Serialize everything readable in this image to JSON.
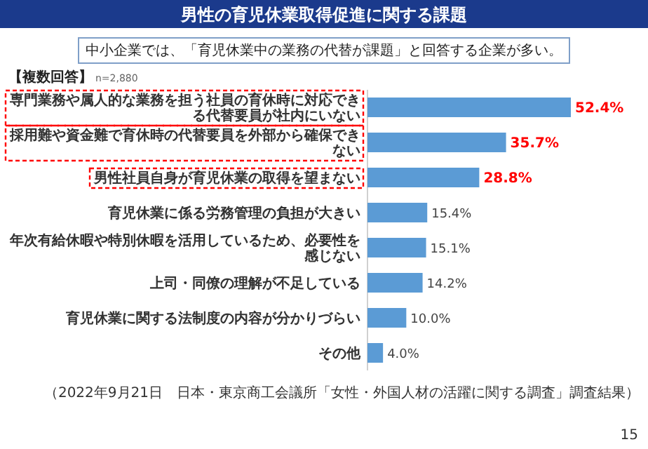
{
  "chart_data": {
    "type": "bar",
    "orientation": "horizontal",
    "title": "男性の育児休業取得促進に関する課題",
    "subtitle": "中小企業では、「育児休業中の業務の代替が課題」と回答する企業が多い。",
    "categories": [
      "専門業務や属人的な業務を担う社員の育休時に対応できる代替要員が社内にいない",
      "採用難や資金難で育休時の代替要員を外部から確保できない",
      "男性社員自身が育児休業の取得を望まない",
      "育児休業に係る労務管理の負担が大きい",
      "年次有給休暇や特別休暇を活用しているため、必要性を感じない",
      "上司・同僚の理解が不足している",
      "育児休業に関する法制度の内容が分かりづらい",
      "その他"
    ],
    "values": [
      52.4,
      35.7,
      28.8,
      15.4,
      15.1,
      14.2,
      10.0,
      4.0
    ],
    "value_labels": [
      "52.4%",
      "35.7%",
      "28.8%",
      "15.4%",
      "15.1%",
      "14.2%",
      "10.0%",
      "4.0%"
    ],
    "color": "#5b9bd5",
    "annotations": [
      "【複数回答】",
      "n=2,880",
      "（2022年9月21日　日本・東京商工会議所「女性・外国人材の活躍に関する調査」調査結果）",
      "15"
    ]
  }
}
